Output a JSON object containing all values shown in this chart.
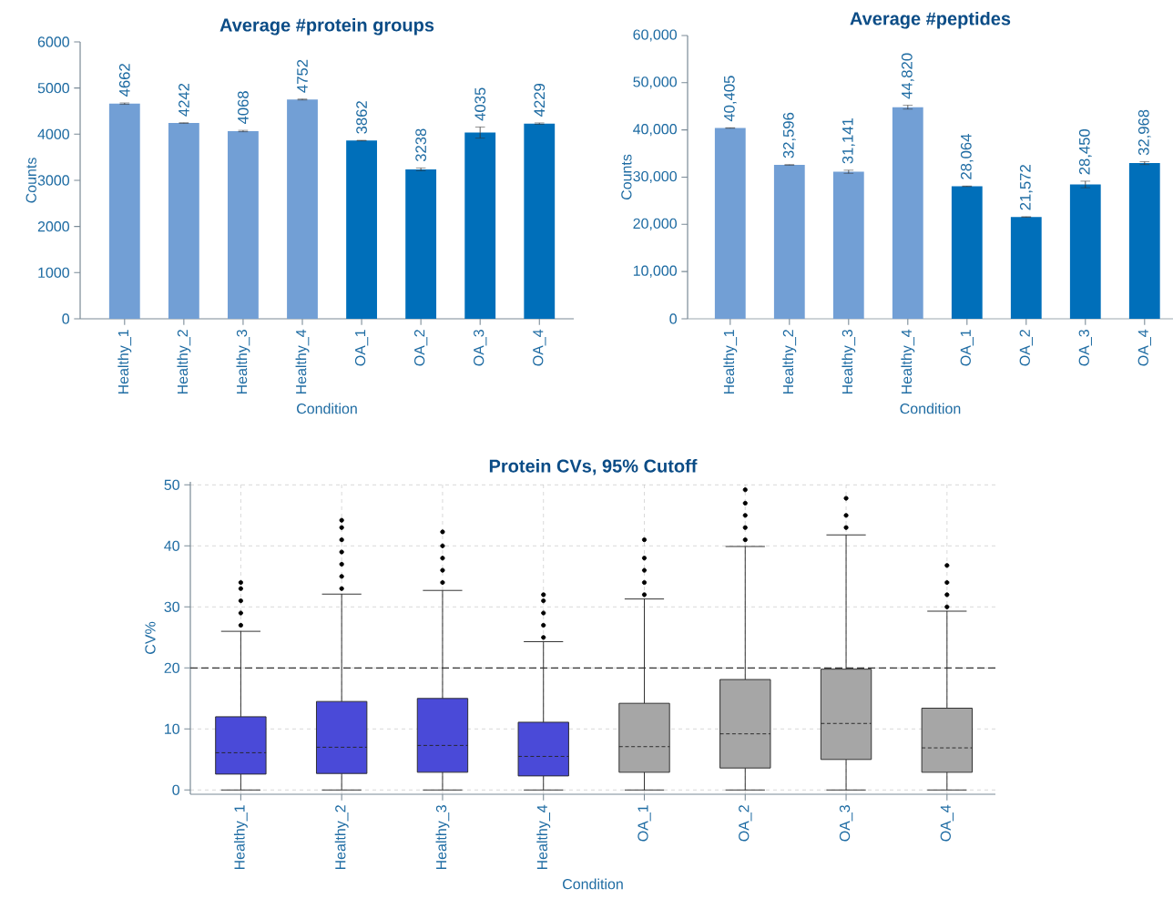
{
  "chart_data": [
    {
      "type": "bar",
      "title": "Average #protein groups",
      "xlabel": "Condition",
      "ylabel": "Counts",
      "categories": [
        "Healthy_1",
        "Healthy_2",
        "Healthy_3",
        "Healthy_4",
        "OA_1",
        "OA_2",
        "OA_3",
        "OA_4"
      ],
      "values": [
        4662,
        4242,
        4068,
        4752,
        3862,
        3238,
        4035,
        4229
      ],
      "value_labels": [
        "4662",
        "4242",
        "4068",
        "4752",
        "3862",
        "3238",
        "4035",
        "4229"
      ],
      "errors": [
        15,
        5,
        15,
        10,
        5,
        30,
        120,
        15
      ],
      "colors": [
        "#729fd5",
        "#729fd5",
        "#729fd5",
        "#729fd5",
        "#006fba",
        "#006fba",
        "#006fba",
        "#006fba"
      ],
      "ylim": [
        0,
        6000
      ],
      "yticks": [
        0,
        1000,
        2000,
        3000,
        4000,
        5000,
        6000
      ]
    },
    {
      "type": "bar",
      "title": "Average #peptides",
      "xlabel": "Condition",
      "ylabel": "Counts",
      "categories": [
        "Healthy_1",
        "Healthy_2",
        "Healthy_3",
        "Healthy_4",
        "OA_1",
        "OA_2",
        "OA_3",
        "OA_4"
      ],
      "values": [
        40405,
        32596,
        31141,
        44820,
        28064,
        21572,
        28450,
        32968
      ],
      "value_labels": [
        "40,405",
        "32,596",
        "31,141",
        "44,820",
        "28,064",
        "21,572",
        "28,450",
        "32,968"
      ],
      "errors": [
        50,
        50,
        330,
        400,
        50,
        50,
        700,
        300
      ],
      "colors": [
        "#729fd5",
        "#729fd5",
        "#729fd5",
        "#729fd5",
        "#006fba",
        "#006fba",
        "#006fba",
        "#006fba"
      ],
      "ylim": [
        0,
        60000
      ],
      "yticks": [
        0,
        {
          "value": 10000,
          "label": "10,000"
        },
        {
          "value": 20000,
          "label": "20,000"
        },
        {
          "value": 30000,
          "label": "30,000"
        },
        {
          "value": 40000,
          "label": "40,000"
        },
        {
          "value": 50000,
          "label": "50,000"
        },
        {
          "value": 60000,
          "label": "60,000"
        }
      ]
    },
    {
      "type": "box",
      "title": "Protein CVs, 95% Cutoff",
      "xlabel": "Condition",
      "ylabel": "CV%",
      "categories": [
        "Healthy_1",
        "Healthy_2",
        "Healthy_3",
        "Healthy_4",
        "OA_1",
        "OA_2",
        "OA_3",
        "OA_4"
      ],
      "boxes": [
        {
          "low": 0,
          "q1": 2.6,
          "median": 6.1,
          "q3": 12.0,
          "high": 26.0,
          "outliers": [
            27,
            29,
            31,
            33,
            34
          ]
        },
        {
          "low": 0,
          "q1": 2.7,
          "median": 7.0,
          "q3": 14.5,
          "high": 32.1,
          "outliers": [
            33,
            35,
            37,
            39,
            41,
            43,
            44.2
          ]
        },
        {
          "low": 0,
          "q1": 2.9,
          "median": 7.3,
          "q3": 15.0,
          "high": 32.7,
          "outliers": [
            34,
            36,
            38,
            40,
            42.3
          ]
        },
        {
          "low": 0,
          "q1": 2.3,
          "median": 5.5,
          "q3": 11.1,
          "high": 24.3,
          "outliers": [
            25,
            27,
            29,
            31,
            32
          ]
        },
        {
          "low": 0,
          "q1": 2.9,
          "median": 7.1,
          "q3": 14.2,
          "high": 31.3,
          "outliers": [
            32,
            34,
            36,
            38,
            41
          ]
        },
        {
          "low": 0,
          "q1": 3.6,
          "median": 9.2,
          "q3": 18.1,
          "high": 39.9,
          "outliers": [
            41,
            43,
            45,
            47,
            49.2
          ]
        },
        {
          "low": 0,
          "q1": 5.0,
          "median": 10.9,
          "q3": 19.8,
          "high": 41.8,
          "outliers": [
            43,
            45,
            47.8
          ]
        },
        {
          "low": 0,
          "q1": 2.9,
          "median": 6.9,
          "q3": 13.4,
          "high": 29.3,
          "outliers": [
            30,
            32,
            34,
            36.8
          ]
        }
      ],
      "colors": [
        "#4a4ad8",
        "#4a4ad8",
        "#4a4ad8",
        "#4a4ad8",
        "#a6a6a6",
        "#a6a6a6",
        "#a6a6a6",
        "#a6a6a6"
      ],
      "ylim": [
        -0.7,
        50.5
      ],
      "yticks": [
        0,
        10,
        20,
        30,
        40,
        50
      ],
      "grid": true,
      "ref_lines": [
        {
          "axis": "y",
          "value": 20,
          "color": "#333333",
          "line_style": "dashed"
        }
      ]
    }
  ]
}
